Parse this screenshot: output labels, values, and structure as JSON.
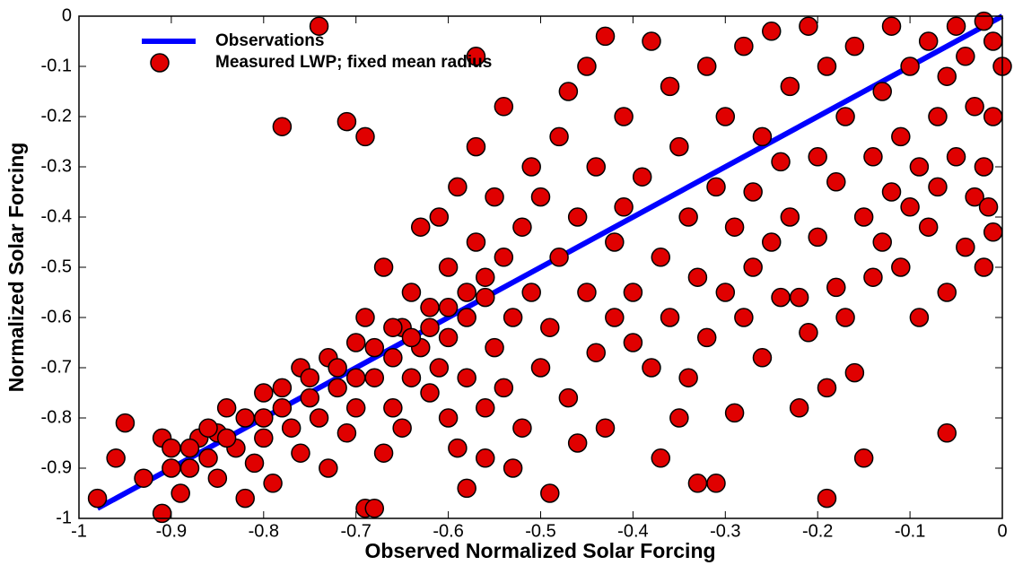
{
  "chart_data": {
    "type": "scatter",
    "x_label": "Observed Normalized Solar Forcing",
    "y_label": "Normalized Solar Forcing",
    "xlim": [
      -1,
      0
    ],
    "ylim": [
      -1,
      0
    ],
    "xticks": [
      -1,
      -0.9,
      -0.8,
      -0.7,
      -0.6,
      -0.5,
      -0.4,
      -0.3,
      -0.2,
      -0.1,
      0
    ],
    "yticks": [
      -1,
      -0.9,
      -0.8,
      -0.7,
      -0.6,
      -0.5,
      -0.4,
      -0.3,
      -0.2,
      -0.1,
      0
    ],
    "legend": "upper-left",
    "series": [
      {
        "name": "Observations",
        "type": "line",
        "color": "#0000ff",
        "x": [
          -0.98,
          0
        ],
        "values": [
          -0.98,
          0
        ]
      },
      {
        "name": "Measured LWP; fixed mean radius",
        "type": "scatter",
        "color": "#e00000",
        "x": [
          -0.98,
          -0.95,
          -0.96,
          -0.93,
          -0.91,
          -0.91,
          -0.9,
          -0.89,
          -0.88,
          -0.87,
          -0.86,
          -0.85,
          -0.85,
          -0.84,
          -0.83,
          -0.82,
          -0.82,
          -0.81,
          -0.8,
          -0.8,
          -0.79,
          -0.78,
          -0.78,
          -0.77,
          -0.76,
          -0.76,
          -0.75,
          -0.74,
          -0.74,
          -0.73,
          -0.73,
          -0.72,
          -0.71,
          -0.71,
          -0.7,
          -0.7,
          -0.69,
          -0.69,
          -0.69,
          -0.68,
          -0.68,
          -0.67,
          -0.67,
          -0.66,
          -0.66,
          -0.65,
          -0.65,
          -0.64,
          -0.64,
          -0.63,
          -0.63,
          -0.62,
          -0.62,
          -0.61,
          -0.61,
          -0.6,
          -0.6,
          -0.6,
          -0.59,
          -0.59,
          -0.58,
          -0.58,
          -0.58,
          -0.57,
          -0.57,
          -0.57,
          -0.56,
          -0.56,
          -0.56,
          -0.55,
          -0.55,
          -0.54,
          -0.54,
          -0.54,
          -0.53,
          -0.53,
          -0.52,
          -0.52,
          -0.51,
          -0.51,
          -0.5,
          -0.5,
          -0.49,
          -0.49,
          -0.48,
          -0.48,
          -0.47,
          -0.47,
          -0.46,
          -0.46,
          -0.45,
          -0.45,
          -0.44,
          -0.44,
          -0.43,
          -0.43,
          -0.42,
          -0.42,
          -0.41,
          -0.41,
          -0.4,
          -0.4,
          -0.39,
          -0.38,
          -0.38,
          -0.37,
          -0.37,
          -0.36,
          -0.36,
          -0.35,
          -0.35,
          -0.34,
          -0.34,
          -0.33,
          -0.33,
          -0.32,
          -0.32,
          -0.31,
          -0.31,
          -0.3,
          -0.3,
          -0.29,
          -0.29,
          -0.28,
          -0.28,
          -0.27,
          -0.27,
          -0.26,
          -0.26,
          -0.25,
          -0.25,
          -0.24,
          -0.24,
          -0.23,
          -0.23,
          -0.22,
          -0.22,
          -0.21,
          -0.21,
          -0.2,
          -0.2,
          -0.19,
          -0.19,
          -0.19,
          -0.18,
          -0.18,
          -0.17,
          -0.17,
          -0.16,
          -0.16,
          -0.15,
          -0.15,
          -0.14,
          -0.14,
          -0.13,
          -0.13,
          -0.12,
          -0.12,
          -0.11,
          -0.11,
          -0.1,
          -0.1,
          -0.09,
          -0.09,
          -0.08,
          -0.08,
          -0.07,
          -0.07,
          -0.06,
          -0.06,
          -0.06,
          -0.05,
          -0.05,
          -0.04,
          -0.04,
          -0.03,
          -0.03,
          -0.02,
          -0.02,
          -0.02,
          -0.01,
          -0.01,
          -0.01,
          0,
          -0.015,
          -0.75,
          -0.72,
          -0.7,
          -0.68,
          -0.66,
          -0.64,
          -0.62,
          -0.6,
          -0.58,
          -0.56,
          -0.8,
          -0.78,
          -0.84,
          -0.88,
          -0.9,
          -0.86
        ],
        "values": [
          -0.96,
          -0.81,
          -0.88,
          -0.92,
          -0.84,
          -0.99,
          -0.86,
          -0.95,
          -0.9,
          -0.84,
          -0.88,
          -0.83,
          -0.92,
          -0.78,
          -0.86,
          -0.96,
          -0.8,
          -0.89,
          -0.75,
          -0.84,
          -0.93,
          -0.22,
          -0.78,
          -0.82,
          -0.7,
          -0.87,
          -0.76,
          -0.02,
          -0.8,
          -0.68,
          -0.9,
          -0.74,
          -0.21,
          -0.83,
          -0.65,
          -0.78,
          -0.6,
          -0.24,
          -0.98,
          -0.72,
          -0.98,
          -0.5,
          -0.87,
          -0.68,
          -0.78,
          -0.62,
          -0.82,
          -0.55,
          -0.72,
          -0.42,
          -0.66,
          -0.75,
          -0.58,
          -0.4,
          -0.7,
          -0.5,
          -0.64,
          -0.8,
          -0.34,
          -0.86,
          -0.6,
          -0.94,
          -0.72,
          -0.26,
          -0.08,
          -0.45,
          -0.56,
          -0.78,
          -0.88,
          -0.36,
          -0.66,
          -0.18,
          -0.48,
          -0.74,
          -0.6,
          -0.9,
          -0.42,
          -0.82,
          -0.3,
          -0.55,
          -0.7,
          -0.36,
          -0.62,
          -0.95,
          -0.24,
          -0.48,
          -0.15,
          -0.76,
          -0.4,
          -0.85,
          -0.1,
          -0.55,
          -0.3,
          -0.67,
          -0.04,
          -0.82,
          -0.45,
          -0.6,
          -0.2,
          -0.38,
          -0.65,
          -0.55,
          -0.32,
          -0.7,
          -0.05,
          -0.88,
          -0.48,
          -0.14,
          -0.6,
          -0.26,
          -0.8,
          -0.4,
          -0.72,
          -0.93,
          -0.52,
          -0.1,
          -0.64,
          -0.93,
          -0.34,
          -0.2,
          -0.55,
          -0.79,
          -0.42,
          -0.06,
          -0.6,
          -0.35,
          -0.5,
          -0.68,
          -0.24,
          -0.03,
          -0.45,
          -0.29,
          -0.56,
          -0.14,
          -0.4,
          -0.78,
          -0.56,
          -0.63,
          -0.02,
          -0.28,
          -0.44,
          -0.96,
          -0.74,
          -0.1,
          -0.54,
          -0.33,
          -0.6,
          -0.2,
          -0.71,
          -0.06,
          -0.88,
          -0.4,
          -0.52,
          -0.28,
          -0.15,
          -0.45,
          -0.35,
          -0.02,
          -0.24,
          -0.5,
          -0.1,
          -0.38,
          -0.6,
          -0.3,
          -0.05,
          -0.42,
          -0.2,
          -0.34,
          -0.83,
          -0.55,
          -0.12,
          -0.02,
          -0.28,
          -0.46,
          -0.08,
          -0.36,
          -0.18,
          -0.01,
          -0.5,
          -0.3,
          -0.05,
          -0.43,
          -0.2,
          -0.1,
          -0.38,
          -0.72,
          -0.7,
          -0.72,
          -0.66,
          -0.62,
          -0.64,
          -0.62,
          -0.58,
          -0.55,
          -0.52,
          -0.8,
          -0.74,
          -0.84,
          -0.86,
          -0.9,
          -0.82
        ]
      }
    ]
  }
}
